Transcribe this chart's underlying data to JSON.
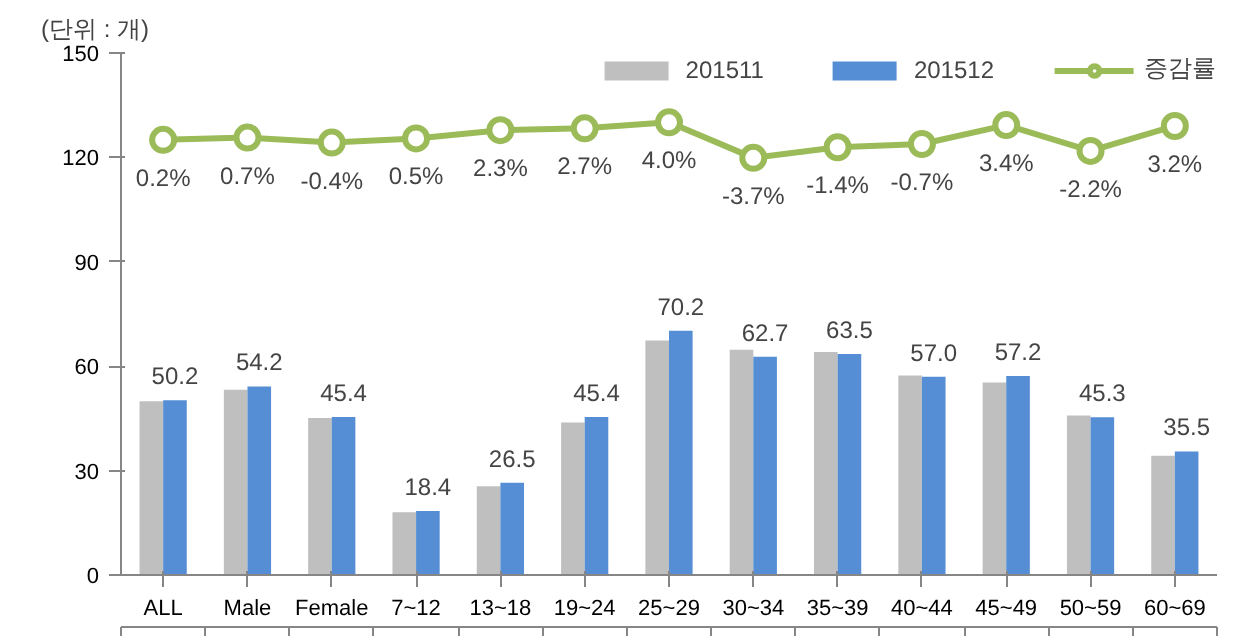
{
  "chart_data": {
    "type": "bar",
    "ylabel": "(단위 : 개)",
    "categories": [
      "ALL",
      "Male",
      "Female",
      "7~12",
      "13~18",
      "19~24",
      "25~29",
      "30~34",
      "35~39",
      "40~44",
      "45~49",
      "50~59",
      "60~69"
    ],
    "series": [
      {
        "name": "201511",
        "color": "#bfbfbf",
        "values": [
          49.9,
          53.2,
          45.1,
          18.0,
          25.5,
          43.8,
          67.4,
          64.7,
          64.1,
          57.3,
          55.3,
          45.8,
          34.3
        ]
      },
      {
        "name": "201512",
        "color": "#558ed5",
        "values": [
          50.2,
          54.2,
          45.4,
          18.4,
          26.5,
          45.4,
          70.2,
          62.7,
          63.5,
          57.0,
          57.2,
          45.3,
          35.5
        ],
        "value_labels": [
          "50.2",
          "54.2",
          "45.4",
          "18.4",
          "26.5",
          "45.4",
          "70.2",
          "62.7",
          "63.5",
          "57.0",
          "57.2",
          "45.3",
          "35.5"
        ]
      },
      {
        "name": "증감률",
        "type": "line",
        "axis": "y2",
        "color": "#9bbb59",
        "marker": "circle",
        "values": [
          0.2,
          0.7,
          -0.4,
          0.5,
          2.3,
          2.7,
          4.0,
          -3.7,
          -1.4,
          -0.7,
          3.4,
          -2.2,
          3.2
        ],
        "value_labels": [
          "0.2%",
          "0.7%",
          "-0.4%",
          "0.5%",
          "2.3%",
          "2.7%",
          "4.0%",
          "-3.7%",
          "-1.4%",
          "-0.7%",
          "3.4%",
          "-2.2%",
          "3.2%"
        ]
      }
    ],
    "ylim": [
      0,
      150
    ],
    "yticks": [
      0,
      30,
      60,
      90,
      120,
      150
    ],
    "y2lim": [
      -94,
      19
    ],
    "legend": "top right",
    "grid": false
  }
}
